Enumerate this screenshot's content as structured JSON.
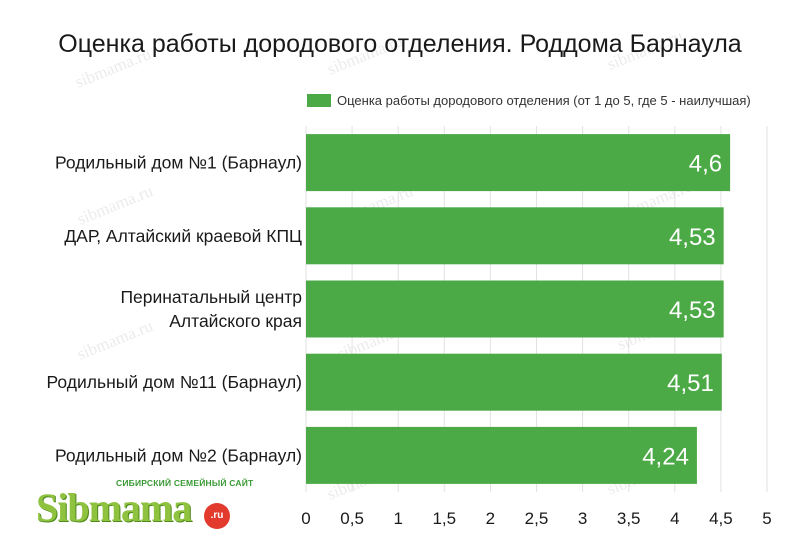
{
  "title": "Оценка работы дородового отделения. Роддома Барнаула",
  "colors": {
    "bar": "#4caa46",
    "grid": "#e2e2e2"
  },
  "watermark_text": "sibmama.ru",
  "logo": {
    "tagline": "СИБИРСКИЙ СЕМЕЙНЫЙ САЙТ",
    "name": "Sibmama",
    "domain": ".ru"
  },
  "chart_data": {
    "type": "bar",
    "orientation": "horizontal",
    "title": "Оценка работы дородового отделения. Роддома Барнаула",
    "categories": [
      "Родильный дом №1 (Барнаул)",
      "ДАР, Алтайский краевой КПЦ",
      "Перинатальный центр Алтайского края",
      "Родильный дом №11 (Барнаул)",
      "Родильный дом №2 (Барнаул)"
    ],
    "category_lines": [
      [
        "Родильный дом №1 (Барнаул)"
      ],
      [
        "ДАР, Алтайский краевой КПЦ"
      ],
      [
        "Перинатальный центр",
        "Алтайского края"
      ],
      [
        "Родильный дом №11 (Барнаул)"
      ],
      [
        "Родильный дом №2 (Барнаул)"
      ]
    ],
    "series": [
      {
        "name": "Оценка работы дородового отделения (от 1 до 5, где 5 - наилучшая)",
        "values": [
          4.6,
          4.53,
          4.53,
          4.51,
          4.24
        ],
        "value_labels": [
          "4,6",
          "4,53",
          "4,53",
          "4,51",
          "4,24"
        ]
      }
    ],
    "xlim": [
      0,
      5
    ],
    "x_ticks": [
      0,
      0.5,
      1,
      1.5,
      2,
      2.5,
      3,
      3.5,
      4,
      4.5,
      5
    ],
    "x_tick_labels": [
      "0",
      "0,5",
      "1",
      "1,5",
      "2",
      "2,5",
      "3",
      "3,5",
      "4",
      "4,5",
      "5"
    ],
    "grid": true,
    "legend_position": "top-right"
  }
}
